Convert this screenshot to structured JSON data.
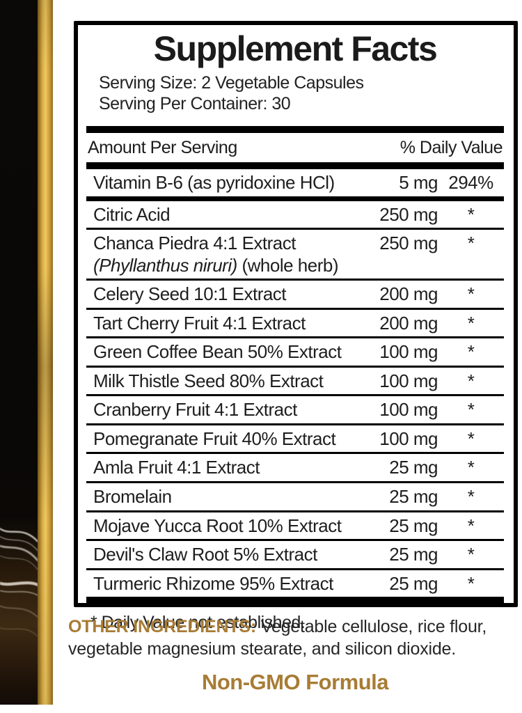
{
  "colors": {
    "accent_gold": "#a87c35",
    "stripe_gold_bright": "#f0c95f",
    "stripe_gold_dark": "#7e5a18",
    "panel_black": "#0a0806"
  },
  "facts": {
    "title": "Supplement Facts",
    "serving_size": "Serving Size: 2 Vegetable Capsules",
    "servings_per_container": "Serving Per Container: 30",
    "columns": {
      "amount": "Amount Per Serving",
      "daily_value": "% Daily Value"
    },
    "rows": [
      {
        "name": "Vitamin B-6 (as pyridoxine HCl)",
        "amount": "5 mg",
        "dv": "294%"
      },
      {
        "name": "Citric Acid",
        "amount": "250 mg",
        "dv": "*"
      },
      {
        "name": "Chanca Piedra 4:1 Extract",
        "sub_italic": "(Phyllanthus niruri)",
        "sub_plain": " (whole herb)",
        "amount": "250 mg",
        "dv": "*"
      },
      {
        "name": "Celery Seed 10:1 Extract",
        "amount": "200 mg",
        "dv": "*"
      },
      {
        "name": "Tart Cherry Fruit 4:1 Extract",
        "amount": "200 mg",
        "dv": "*"
      },
      {
        "name": "Green Coffee Bean 50% Extract",
        "amount": "100 mg",
        "dv": "*"
      },
      {
        "name": "Milk Thistle Seed 80% Extract",
        "amount": "100 mg",
        "dv": "*"
      },
      {
        "name": "Cranberry Fruit 4:1 Extract",
        "amount": "100 mg",
        "dv": "*"
      },
      {
        "name": "Pomegranate Fruit 40% Extract",
        "amount": "100 mg",
        "dv": "*"
      },
      {
        "name": "Amla Fruit 4:1 Extract",
        "amount": "25 mg",
        "dv": "*"
      },
      {
        "name": "Bromelain",
        "amount": "25 mg",
        "dv": "*"
      },
      {
        "name": "Mojave Yucca Root 10% Extract",
        "amount": "25 mg",
        "dv": "*"
      },
      {
        "name": "Devil's Claw Root 5% Extract",
        "amount": "25 mg",
        "dv": "*"
      },
      {
        "name": "Turmeric Rhizome 95% Extract",
        "amount": "25 mg",
        "dv": "*"
      }
    ],
    "footnote": "* Daily Value not established."
  },
  "other_ingredients": {
    "label": "OTHER INGREDIENTS:",
    "line1_rest": " Vegetable cellulose, rice flour,",
    "line2": "vegetable magnesium stearate, and silicon dioxide."
  },
  "non_gmo": "Non-GMO Formula"
}
